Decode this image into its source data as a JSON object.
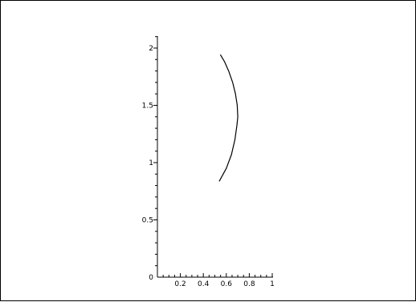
{
  "chart_data": {
    "type": "line",
    "title": "",
    "xlabel": "",
    "ylabel": "",
    "xlim": [
      0,
      1
    ],
    "ylim": [
      0,
      2.1
    ],
    "grid": false,
    "x_ticks": [
      "0.2",
      "0.4",
      "0.6",
      "0.8",
      "1"
    ],
    "y_ticks": [
      "0",
      "0.5",
      "1",
      "1.5",
      "2"
    ],
    "series": [
      {
        "color": "#000000",
        "points": [
          [
            0.54,
            0.84
          ],
          [
            0.6,
            0.95
          ],
          [
            0.645,
            1.07
          ],
          [
            0.675,
            1.2
          ],
          [
            0.693,
            1.33
          ],
          [
            0.7,
            1.4
          ],
          [
            0.695,
            1.5
          ],
          [
            0.68,
            1.6
          ],
          [
            0.655,
            1.7
          ],
          [
            0.62,
            1.8
          ],
          [
            0.585,
            1.88
          ],
          [
            0.55,
            1.94
          ]
        ]
      }
    ]
  }
}
